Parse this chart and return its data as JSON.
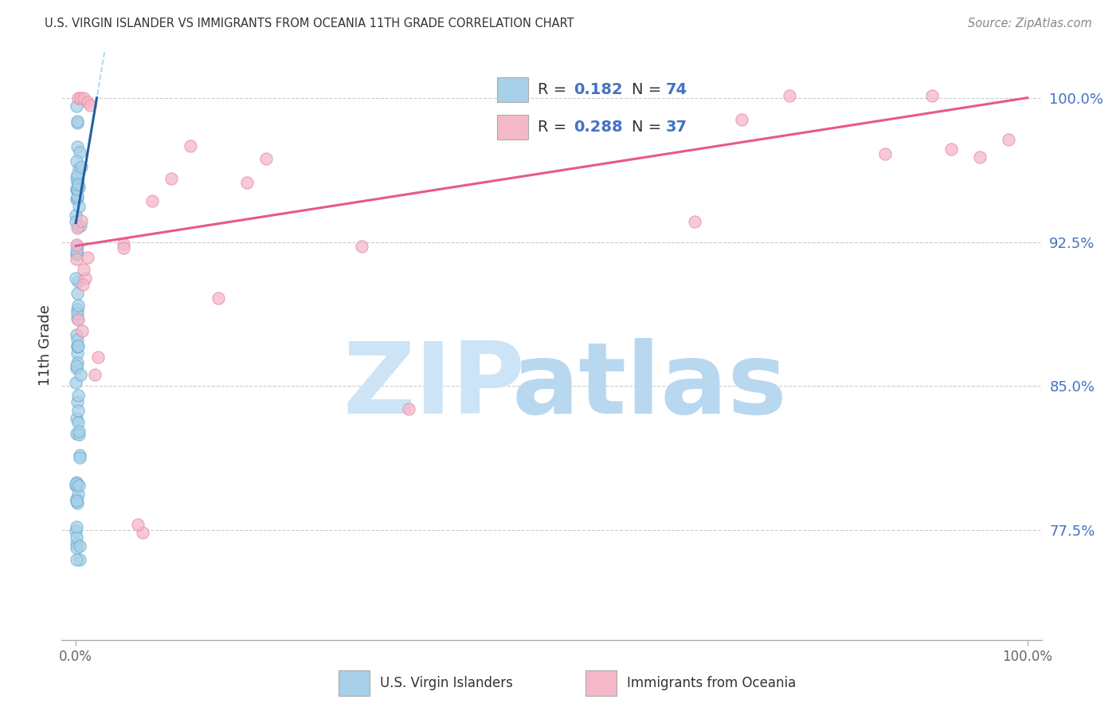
{
  "title": "U.S. VIRGIN ISLANDER VS IMMIGRANTS FROM OCEANIA 11TH GRADE CORRELATION CHART",
  "source": "Source: ZipAtlas.com",
  "ylabel": "11th Grade",
  "ytick_values": [
    0.775,
    0.85,
    0.925,
    1.0
  ],
  "ytick_labels": [
    "77.5%",
    "85.0%",
    "92.5%",
    "100.0%"
  ],
  "xtick_values": [
    0.0,
    1.0
  ],
  "xtick_labels": [
    "0.0%",
    "100.0%"
  ],
  "xlim": [
    -0.015,
    1.015
  ],
  "ylim": [
    0.718,
    1.025
  ],
  "legend1_label": "U.S. Virgin Islanders",
  "legend2_label": "Immigrants from Oceania",
  "R1": "0.182",
  "N1": "74",
  "R2": "0.288",
  "N2": "37",
  "color_blue_fill": "#a8d0e8",
  "color_blue_edge": "#6aaed0",
  "color_pink_fill": "#f5b8c8",
  "color_pink_edge": "#e888a8",
  "color_trend_blue_solid": "#2060a0",
  "color_trend_blue_dash": "#90c0e0",
  "color_trend_pink": "#e85888",
  "color_r_blue": "#4472c4",
  "color_n_blue": "#4472c4",
  "color_ytick": "#4472c4",
  "color_grid": "#cccccc",
  "watermark_zip": "#cce4f5",
  "watermark_atlas": "#b8d8f0",
  "trend_blue_x0": 0.0,
  "trend_blue_y0": 0.935,
  "trend_blue_x1": 0.022,
  "trend_blue_y1": 1.0,
  "trend_pink_x0": 0.0,
  "trend_pink_y0": 0.923,
  "trend_pink_x1": 1.0,
  "trend_pink_y1": 1.0
}
